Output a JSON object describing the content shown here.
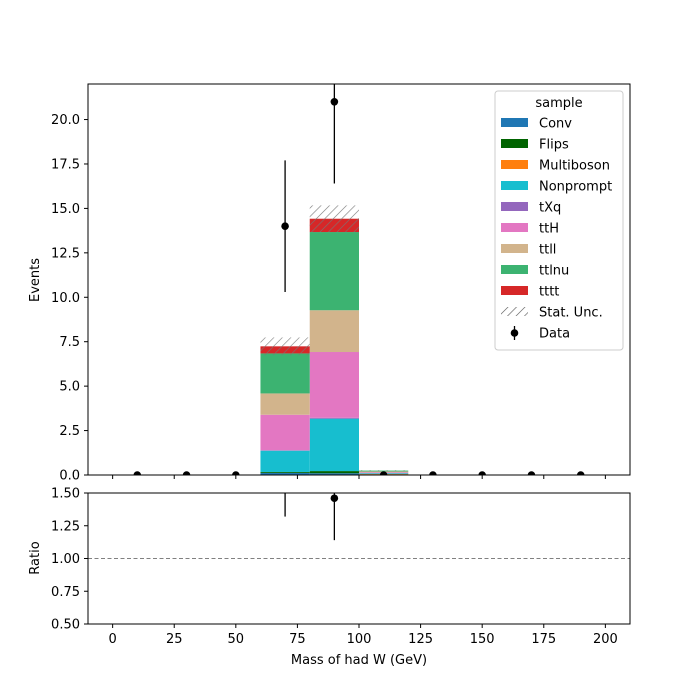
{
  "chart_data": {
    "type": "bar",
    "stacked": true,
    "xlabel": "Mass of had W (GeV)",
    "xlim": [
      -10,
      210
    ],
    "bin_edges": [
      0,
      20,
      40,
      60,
      80,
      100,
      120,
      140,
      160,
      180,
      200
    ],
    "x_ticks": [
      0,
      25,
      50,
      75,
      100,
      125,
      150,
      175,
      200
    ],
    "main": {
      "ylabel": "Events",
      "ylim": [
        0,
        22
      ],
      "y_ticks": [
        0.0,
        2.5,
        5.0,
        7.5,
        10.0,
        12.5,
        15.0,
        17.5,
        20.0
      ],
      "series": [
        {
          "name": "Conv",
          "color": "#1f77b4",
          "values": [
            0,
            0,
            0,
            0.12,
            0.1,
            0.02,
            0,
            0,
            0,
            0
          ]
        },
        {
          "name": "Flips",
          "color": "#006400",
          "values": [
            0,
            0,
            0,
            0.05,
            0.12,
            0,
            0,
            0,
            0,
            0
          ]
        },
        {
          "name": "Multiboson",
          "color": "#ff7f0e",
          "values": [
            0,
            0,
            0,
            0,
            0,
            0.03,
            0,
            0,
            0,
            0
          ]
        },
        {
          "name": "Nonprompt",
          "color": "#17becf",
          "values": [
            0,
            0,
            0,
            1.2,
            2.95,
            0.05,
            0,
            0,
            0,
            0
          ]
        },
        {
          "name": "tXq",
          "color": "#9467bd",
          "values": [
            0,
            0,
            0,
            0.02,
            0.05,
            0,
            0,
            0,
            0,
            0
          ]
        },
        {
          "name": "ttH",
          "color": "#e377c2",
          "values": [
            0,
            0,
            0,
            2.0,
            3.7,
            0.05,
            0,
            0,
            0,
            0
          ]
        },
        {
          "name": "ttll",
          "color": "#d2b48c",
          "values": [
            0,
            0,
            0,
            1.2,
            2.35,
            0.05,
            0,
            0,
            0,
            0
          ]
        },
        {
          "name": "ttlnu",
          "color": "#3cb371",
          "values": [
            0,
            0,
            0,
            2.25,
            4.4,
            0.05,
            0,
            0,
            0,
            0
          ]
        },
        {
          "name": "tttt",
          "color": "#d62728",
          "values": [
            0,
            0,
            0,
            0.4,
            0.75,
            0,
            0,
            0,
            0,
            0
          ]
        }
      ],
      "stat_unc": {
        "name": "Stat. Unc.",
        "values": [
          0,
          0,
          0,
          0.5,
          0.75,
          0.02,
          0,
          0,
          0,
          0
        ]
      },
      "data": {
        "name": "Data",
        "x": [
          10,
          30,
          50,
          70,
          90,
          110,
          130,
          150,
          170,
          190
        ],
        "y": [
          0,
          0,
          0,
          14,
          21,
          0,
          0,
          0,
          0,
          0
        ],
        "yerr": [
          0,
          0,
          0,
          3.7,
          4.6,
          0,
          0,
          0,
          0,
          0
        ]
      },
      "legend": {
        "title": "sample",
        "placement": "top-right"
      }
    },
    "ratio": {
      "ylabel": "Ratio",
      "ylim": [
        0.5,
        1.5
      ],
      "y_ticks": [
        0.5,
        0.75,
        1.0,
        1.25,
        1.5
      ],
      "reference_line": 1.0,
      "points": [
        {
          "x": 70,
          "y": 1.8,
          "err": 0.48
        },
        {
          "x": 90,
          "y": 1.46,
          "err": 0.32
        }
      ]
    }
  }
}
